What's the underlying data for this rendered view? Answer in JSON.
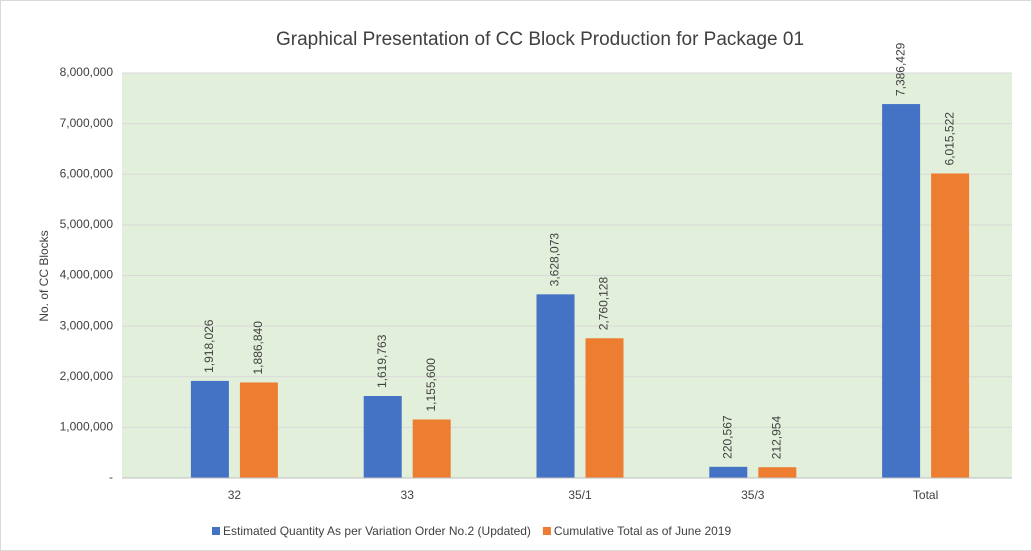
{
  "chart_data": {
    "type": "bar",
    "title": "Graphical Presentation of CC Block Production for Package 01",
    "y_label": "No. of CC Blocks",
    "categories": [
      "32",
      "33",
      "35/1",
      "35/3",
      "Total"
    ],
    "series": [
      {
        "name": "Estimated Quantity As per Variation Order No.2 (Updated)",
        "color": "#4472c4",
        "values": [
          1918026,
          1619763,
          3628073,
          220567,
          7386429
        ],
        "value_labels": [
          "1,918,026",
          "1,619,763",
          "3,628,073",
          "220,567",
          "7,386,429"
        ]
      },
      {
        "name": "Cumulative Total as of June 2019",
        "color": "#ed7d31",
        "values": [
          1886840,
          1155600,
          2760128,
          212954,
          6015522
        ],
        "value_labels": [
          "1,886,840",
          "1,155,600",
          "2,760,128",
          "212,954",
          "6,015,522"
        ]
      }
    ],
    "ylim": [
      0,
      8000000
    ],
    "yticks": [
      {
        "value": 0,
        "label": "-"
      },
      {
        "value": 1000000,
        "label": "1,000,000"
      },
      {
        "value": 2000000,
        "label": "2,000,000"
      },
      {
        "value": 3000000,
        "label": "3,000,000"
      },
      {
        "value": 4000000,
        "label": "4,000,000"
      },
      {
        "value": 5000000,
        "label": "5,000,000"
      },
      {
        "value": 6000000,
        "label": "6,000,000"
      },
      {
        "value": 7000000,
        "label": "7,000,000"
      },
      {
        "value": 8000000,
        "label": "8,000,000"
      }
    ],
    "grid": true,
    "legend": "bottom",
    "background": "#e2efda"
  }
}
